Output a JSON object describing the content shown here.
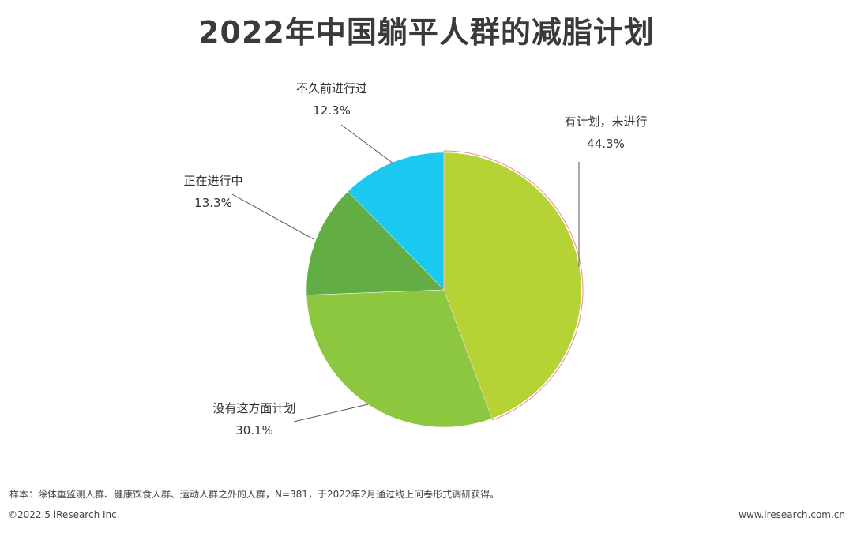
{
  "title": "2022年中国躺平人群的减脂计划",
  "chart_data": {
    "type": "pie",
    "title": "2022年中国躺平人群的减脂计划",
    "unit": "%",
    "slices": [
      {
        "label": "有计划，未进行",
        "value": 44.3,
        "value_label": "44.3%",
        "color": "#b5d334",
        "highlighted": true
      },
      {
        "label": "没有这方面计划",
        "value": 30.1,
        "value_label": "30.1%",
        "color": "#8dc63f"
      },
      {
        "label": "正在进行中",
        "value": 13.3,
        "value_label": "13.3%",
        "color": "#62ae45"
      },
      {
        "label": "不久前进行过",
        "value": 12.3,
        "value_label": "12.3%",
        "color": "#1ac8f0"
      }
    ],
    "legend": "none",
    "highlight_color": "#ef8a8a"
  },
  "footer": {
    "note": "样本：除体重监测人群、健康饮食人群、运动人群之外的人群，N=381，于2022年2月通过线上问卷形式调研获得。",
    "copyright": "©2022.5 iResearch Inc.",
    "website": "www.iresearch.com.cn"
  }
}
